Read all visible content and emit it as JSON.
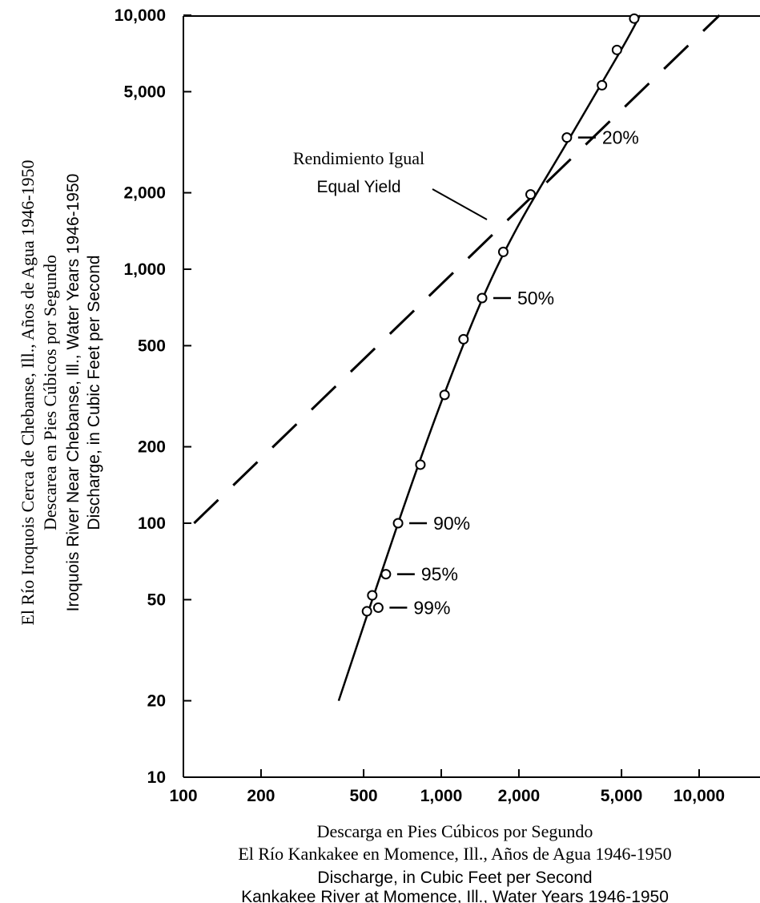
{
  "chart_data": {
    "type": "scatter",
    "x_scale": "log",
    "y_scale": "log",
    "xlim": [
      100,
      15000
    ],
    "ylim": [
      10,
      10000
    ],
    "x_ticks": [
      {
        "value": 100,
        "label": "100"
      },
      {
        "value": 200,
        "label": "200"
      },
      {
        "value": 500,
        "label": "500"
      },
      {
        "value": 1000,
        "label": "1,000"
      },
      {
        "value": 2000,
        "label": "2,000"
      },
      {
        "value": 5000,
        "label": "5,000"
      },
      {
        "value": 10000,
        "label": "10,000"
      }
    ],
    "y_ticks": [
      {
        "value": 10,
        "label": "10"
      },
      {
        "value": 20,
        "label": "20"
      },
      {
        "value": 50,
        "label": "50"
      },
      {
        "value": 100,
        "label": "100"
      },
      {
        "value": 200,
        "label": "200"
      },
      {
        "value": 500,
        "label": "500"
      },
      {
        "value": 1000,
        "label": "1,000"
      },
      {
        "value": 2000,
        "label": "2,000"
      },
      {
        "value": 5000,
        "label": "5,000"
      },
      {
        "value": 10000,
        "label": "10,000"
      }
    ],
    "xlabel_es": [
      "Descarga en Pies Cúbicos por Segundo",
      "El Río Kankakee en Momence, Ill., Años de Agua 1946-1950"
    ],
    "xlabel_en": [
      "Discharge, in Cubic Feet per Second",
      "Kankakee River at Momence, Ill., Water Years 1946-1950"
    ],
    "ylabel_es": [
      "El Río Iroquois Cerca de Chebanse, Ill., Años de Agua  1946-1950",
      "Descarea en Pies Cúbicos por Segundo"
    ],
    "ylabel_en": [
      "Iroquois River Near Chebanse, Ill., Water Years 1946-1950",
      "Discharge, in Cubic Feet per Second"
    ],
    "points": [
      {
        "x": 515,
        "y": 45
      },
      {
        "x": 540,
        "y": 52
      },
      {
        "x": 570,
        "y": 46.5
      },
      {
        "x": 610,
        "y": 63
      },
      {
        "x": 680,
        "y": 100
      },
      {
        "x": 830,
        "y": 170
      },
      {
        "x": 1030,
        "y": 320
      },
      {
        "x": 1220,
        "y": 530
      },
      {
        "x": 1440,
        "y": 770
      },
      {
        "x": 1740,
        "y": 1170
      },
      {
        "x": 2220,
        "y": 1970
      },
      {
        "x": 3070,
        "y": 3300
      },
      {
        "x": 4200,
        "y": 5300
      },
      {
        "x": 4800,
        "y": 7300
      },
      {
        "x": 5600,
        "y": 9700
      }
    ],
    "fitted_curve": [
      {
        "x": 400,
        "y": 20
      },
      {
        "x": 680,
        "y": 100
      },
      {
        "x": 1000,
        "y": 300
      },
      {
        "x": 1440,
        "y": 760
      },
      {
        "x": 2000,
        "y": 1500
      },
      {
        "x": 3070,
        "y": 3150
      },
      {
        "x": 5000,
        "y": 7350
      },
      {
        "x": 5900,
        "y": 10000
      }
    ],
    "equal_yield_line": [
      {
        "x": 110,
        "y": 100
      },
      {
        "x": 12000,
        "y": 10000
      }
    ],
    "equal_yield_label": [
      "Rendimiento Igual",
      "Equal Yield"
    ],
    "percent_labels": [
      {
        "label": "20%",
        "x": 3070,
        "y": 3300
      },
      {
        "label": "50%",
        "x": 1440,
        "y": 770
      },
      {
        "label": "90%",
        "x": 680,
        "y": 100
      },
      {
        "label": "95%",
        "x": 610,
        "y": 63
      },
      {
        "label": "99%",
        "x": 570,
        "y": 46.5
      }
    ]
  }
}
